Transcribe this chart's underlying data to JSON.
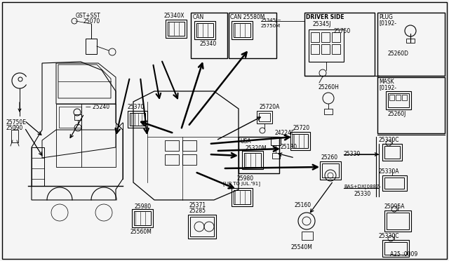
{
  "bg_color": "#f0f0f0",
  "border_color": "#000000",
  "fig_width": 6.4,
  "fig_height": 3.72,
  "dpi": 100,
  "labels": {
    "gst_sst": "GST+SST",
    "p25070": "25070",
    "p25750e": "25750E",
    "p25090": "25090",
    "p25240": "— 25240",
    "p25370": "25370",
    "p25340x": "25340X",
    "can_top": "CAN",
    "p25340": "25340",
    "can_25580m": "CAN 25580M",
    "p25345j": "25345J~",
    "p25750m": "25750M",
    "driver_side": "DRIVER SIDE",
    "p25345j2": "25345J",
    "p25750": "25750",
    "plug": "PLUG",
    "plug_range": "[0192-",
    "p25260d": "25260D",
    "mask": "MASK",
    "mask_range": "[0192-",
    "p25260j": "25260J",
    "p25260h": "25260H",
    "p25720a": "25720A",
    "p24224e": "24224E",
    "p25720": "25720",
    "p25130": "25130",
    "usa": "USA",
    "p25320m": "25320M",
    "p25980a": "25980",
    "up_to": "[UP TO JUL.'91]",
    "p25260": "25260",
    "p25980b": "25980",
    "p25560m": "25560M",
    "p25371": "25371",
    "p25285": "25285",
    "p25160": "25160",
    "p25540m": "25540M",
    "p25330": "25330",
    "p25330c_top": "25330C",
    "p25330a": "25330A",
    "bas_dx": "BAS+DX[0887-",
    "p25330b": "25330",
    "p25095a": "25095A",
    "p25330c_bot": "25330C",
    "part_num": "A25 :0009"
  }
}
